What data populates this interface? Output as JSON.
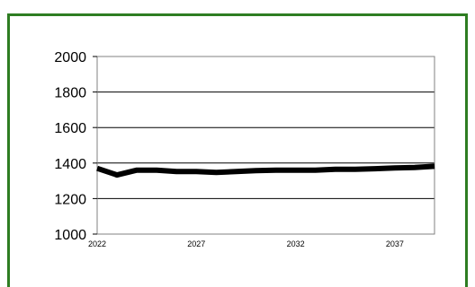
{
  "chart_data": {
    "type": "line",
    "title": "",
    "xlabel": "",
    "ylabel": "",
    "x_tick_labels": [
      "2022",
      "2027",
      "2032",
      "2037"
    ],
    "y_tick_labels": [
      "1000",
      "1200",
      "1400",
      "1600",
      "1800",
      "2000"
    ],
    "xlim": [
      2022,
      2039
    ],
    "ylim": [
      1000,
      2000
    ],
    "grid": "horizontal",
    "legend": "none",
    "series": [
      {
        "color": "#000000",
        "x": [
          2022,
          2023,
          2024,
          2025,
          2026,
          2027,
          2028,
          2029,
          2030,
          2031,
          2032,
          2033,
          2034,
          2035,
          2036,
          2037,
          2038,
          2039
        ],
        "y": [
          1370,
          1333,
          1360,
          1360,
          1352,
          1352,
          1347,
          1352,
          1357,
          1360,
          1360,
          1360,
          1365,
          1365,
          1368,
          1372,
          1375,
          1382
        ]
      }
    ]
  },
  "colors": {
    "frame_border": "#2e7d22",
    "line": "#000000",
    "grid": "#000000"
  }
}
